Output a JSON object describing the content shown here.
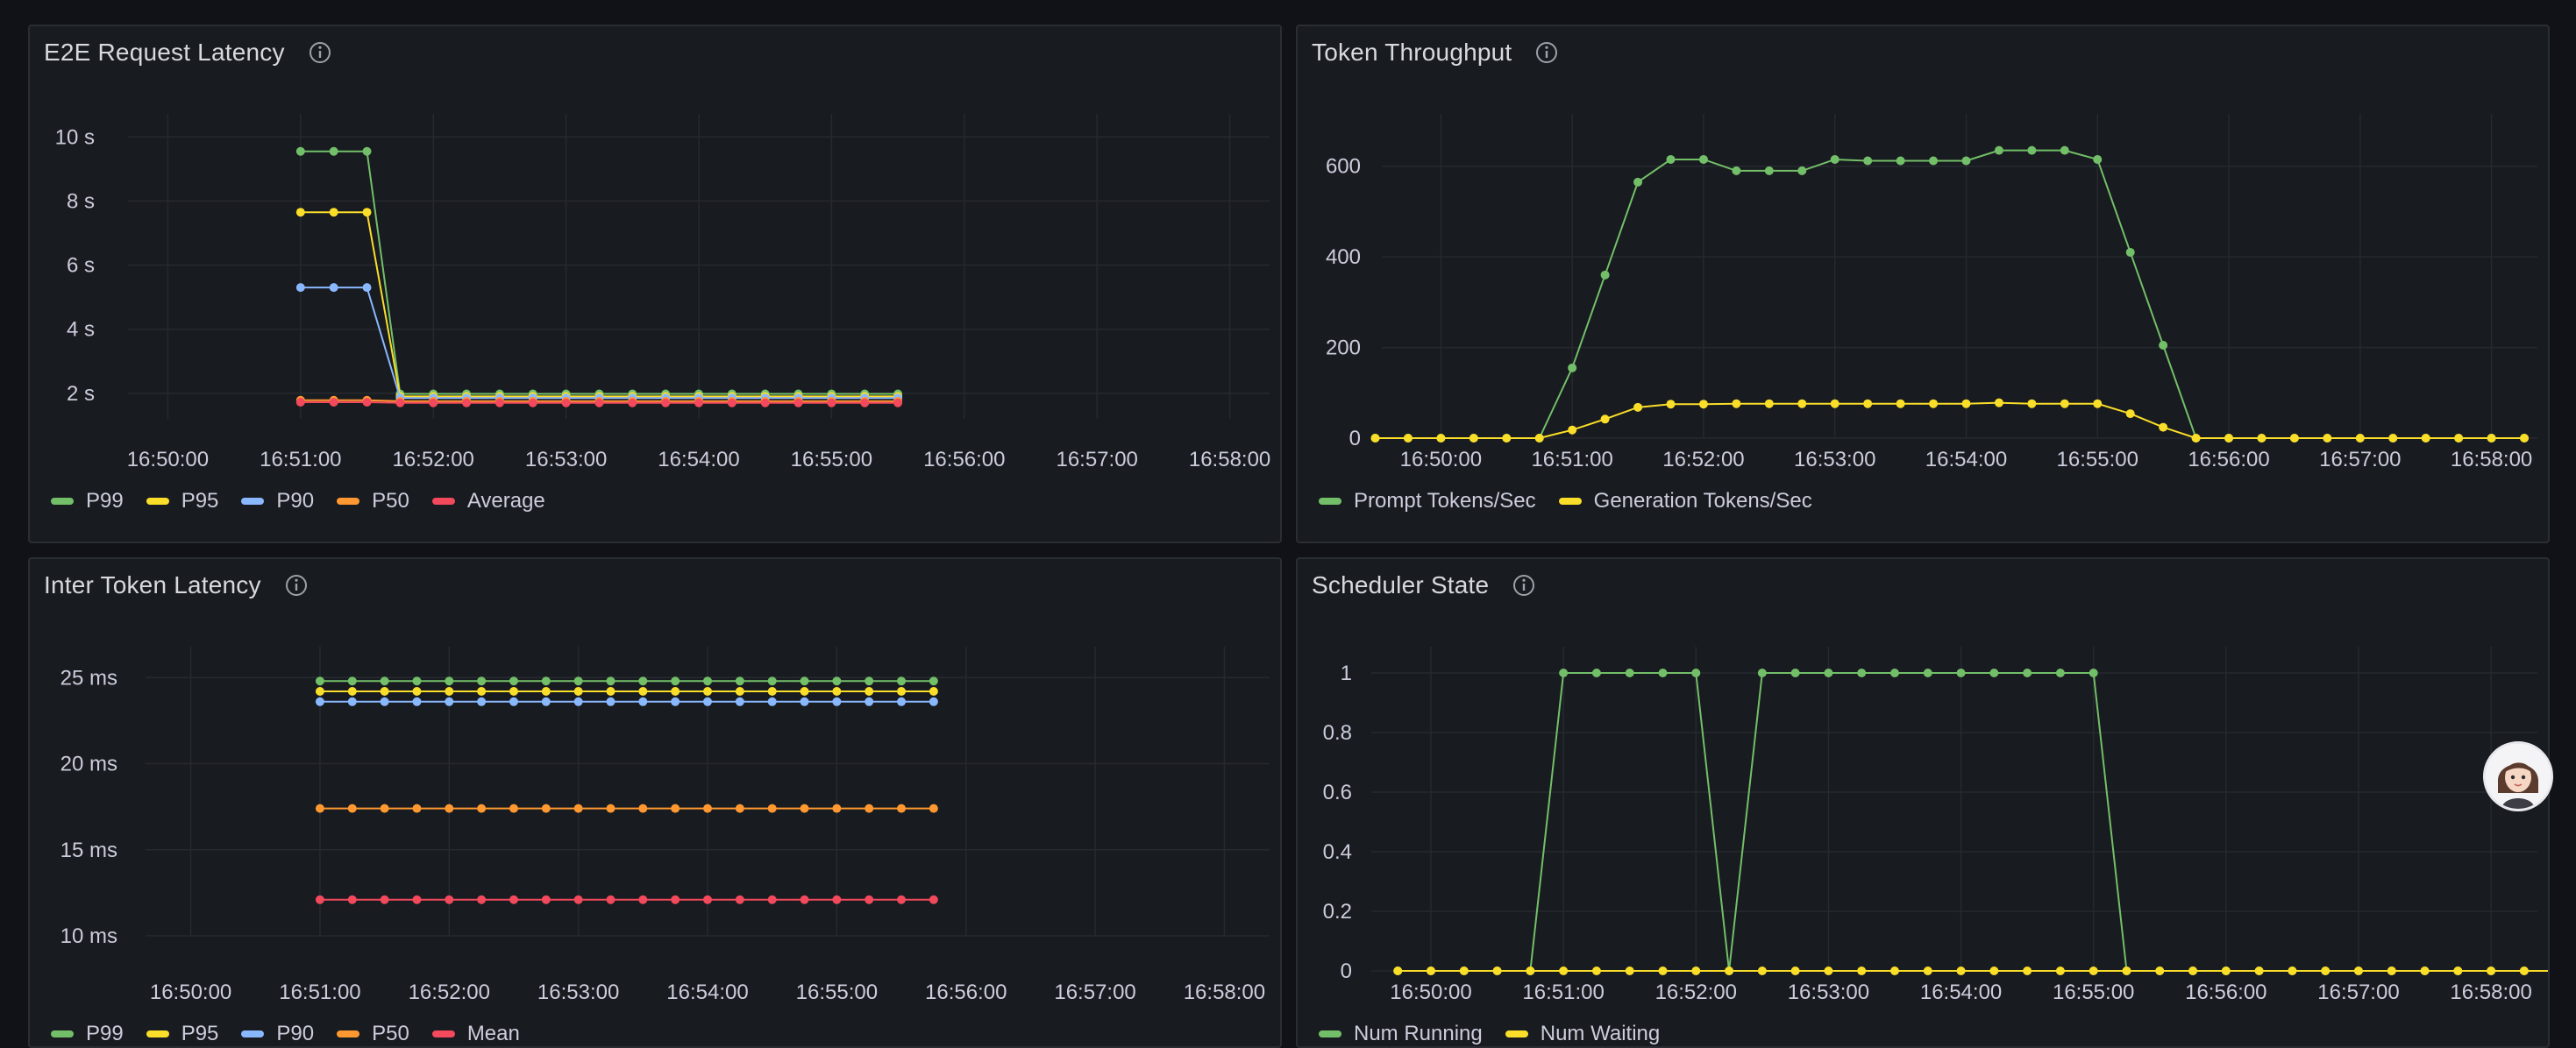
{
  "panels": [
    {
      "id": "e2e",
      "title": "E2E Request Latency",
      "chart_data": {
        "type": "line",
        "x_ticks": [
          "16:50:00",
          "16:51:00",
          "16:52:00",
          "16:53:00",
          "16:54:00",
          "16:55:00",
          "16:56:00",
          "16:57:00",
          "16:58:00"
        ],
        "y_ticks": [
          "10 s",
          "8 s",
          "6 s",
          "4 s",
          "2 s"
        ],
        "y_tick_values": [
          10,
          8,
          6,
          4,
          2
        ],
        "ylim": [
          1.2,
          10.5
        ],
        "xlim_minutes": [
          -0.3,
          8.3
        ],
        "legend": "bottom",
        "series": [
          {
            "name": "P99",
            "color": "#73bf69",
            "start": 1.0,
            "step": 0.25,
            "values": [
              9.55,
              9.55,
              9.55,
              1.98,
              1.98,
              1.98,
              1.98,
              1.98,
              1.98,
              1.98,
              1.98,
              1.98,
              1.98,
              1.98,
              1.98,
              1.98,
              1.98,
              1.98,
              1.98
            ]
          },
          {
            "name": "P95",
            "color": "#fade2a",
            "start": 1.0,
            "step": 0.25,
            "values": [
              7.65,
              7.65,
              7.65,
              1.9,
              1.9,
              1.9,
              1.9,
              1.9,
              1.9,
              1.9,
              1.9,
              1.9,
              1.9,
              1.9,
              1.9,
              1.9,
              1.9,
              1.9,
              1.9
            ]
          },
          {
            "name": "P90",
            "color": "#8ab8ff",
            "start": 1.0,
            "step": 0.25,
            "values": [
              5.3,
              5.3,
              5.3,
              1.85,
              1.85,
              1.85,
              1.85,
              1.85,
              1.85,
              1.85,
              1.85,
              1.85,
              1.85,
              1.85,
              1.85,
              1.85,
              1.85,
              1.85,
              1.85
            ]
          },
          {
            "name": "P50",
            "color": "#ff9830",
            "start": 1.0,
            "step": 0.25,
            "values": [
              1.78,
              1.78,
              1.78,
              1.75,
              1.75,
              1.75,
              1.75,
              1.75,
              1.75,
              1.75,
              1.75,
              1.75,
              1.75,
              1.75,
              1.75,
              1.75,
              1.75,
              1.75,
              1.75
            ]
          },
          {
            "name": "Average",
            "color": "#f2495c",
            "start": 1.0,
            "step": 0.25,
            "values": [
              1.72,
              1.72,
              1.72,
              1.7,
              1.7,
              1.7,
              1.7,
              1.7,
              1.7,
              1.7,
              1.7,
              1.7,
              1.7,
              1.7,
              1.7,
              1.7,
              1.7,
              1.7,
              1.7
            ]
          }
        ]
      }
    },
    {
      "id": "throughput",
      "title": "Token Throughput",
      "chart_data": {
        "type": "line",
        "x_ticks": [
          "16:50:00",
          "16:51:00",
          "16:52:00",
          "16:53:00",
          "16:54:00",
          "16:55:00",
          "16:56:00",
          "16:57:00",
          "16:58:00"
        ],
        "y_ticks": [
          "600",
          "400",
          "200",
          "0"
        ],
        "y_tick_values": [
          600,
          400,
          200,
          0
        ],
        "ylim": [
          0,
          700
        ],
        "xlim_minutes": [
          -0.45,
          8.35
        ],
        "legend": "bottom",
        "series": [
          {
            "name": "Prompt Tokens/Sec",
            "color": "#73bf69",
            "start": -0.5,
            "step": 0.25,
            "values": [
              0,
              0,
              0,
              0,
              0,
              0,
              155,
              360,
              565,
              615,
              615,
              590,
              590,
              590,
              615,
              612,
              612,
              612,
              612,
              635,
              635,
              635,
              615,
              410,
              205,
              0,
              0,
              0,
              0,
              0,
              0,
              0,
              0,
              0,
              0,
              0
            ]
          },
          {
            "name": "Generation Tokens/Sec",
            "color": "#fade2a",
            "start": -0.5,
            "step": 0.25,
            "values": [
              0,
              0,
              0,
              0,
              0,
              0,
              18,
              42,
              68,
              75,
              75,
              76,
              76,
              76,
              76,
              76,
              76,
              76,
              76,
              78,
              76,
              76,
              76,
              54,
              24,
              0,
              0,
              0,
              0,
              0,
              0,
              0,
              0,
              0,
              0,
              0
            ]
          }
        ]
      }
    },
    {
      "id": "itl",
      "title": "Inter Token Latency",
      "chart_data": {
        "type": "line",
        "x_ticks": [
          "16:50:00",
          "16:51:00",
          "16:52:00",
          "16:53:00",
          "16:54:00",
          "16:55:00",
          "16:56:00",
          "16:57:00",
          "16:58:00"
        ],
        "y_ticks": [
          "25 ms",
          "20 ms",
          "15 ms",
          "10 ms"
        ],
        "y_tick_values": [
          25,
          20,
          15,
          10
        ],
        "ylim": [
          10,
          27
        ],
        "xlim_minutes": [
          -0.35,
          8.35
        ],
        "legend": "bottom",
        "series": [
          {
            "name": "P99",
            "color": "#73bf69",
            "start": 1.0,
            "step": 0.25,
            "count": 20,
            "constant": 24.8
          },
          {
            "name": "P95",
            "color": "#fade2a",
            "start": 1.0,
            "step": 0.25,
            "count": 20,
            "constant": 24.2
          },
          {
            "name": "P90",
            "color": "#8ab8ff",
            "start": 1.0,
            "step": 0.25,
            "count": 20,
            "constant": 23.6
          },
          {
            "name": "P50",
            "color": "#ff9830",
            "start": 1.0,
            "step": 0.25,
            "count": 20,
            "constant": 17.4
          },
          {
            "name": "Mean",
            "color": "#f2495c",
            "start": 1.0,
            "step": 0.25,
            "count": 20,
            "constant": 12.1
          }
        ]
      }
    },
    {
      "id": "sched",
      "title": "Scheduler State",
      "chart_data": {
        "type": "line",
        "x_ticks": [
          "16:50:00",
          "16:51:00",
          "16:52:00",
          "16:53:00",
          "16:54:00",
          "16:55:00",
          "16:56:00",
          "16:57:00",
          "16:58:00"
        ],
        "y_ticks": [
          "1",
          "0.8",
          "0.6",
          "0.4",
          "0.2",
          "0"
        ],
        "y_tick_values": [
          1,
          0.8,
          0.6,
          0.4,
          0.2,
          0
        ],
        "ylim": [
          0,
          1.1
        ],
        "xlim_minutes": [
          -0.45,
          8.35
        ],
        "legend": "bottom",
        "series": [
          {
            "name": "Num Running",
            "color": "#73bf69",
            "start": -0.25,
            "step": 0.25,
            "values": [
              0,
              0,
              0,
              0,
              0,
              1,
              1,
              1,
              1,
              1,
              0,
              1,
              1,
              1,
              1,
              1,
              1,
              1,
              1,
              1,
              1,
              1,
              0,
              0,
              0,
              0,
              0,
              0,
              0,
              0,
              0,
              0,
              0,
              0,
              0,
              0,
              0
            ]
          },
          {
            "name": "Num Waiting",
            "color": "#fade2a",
            "start": -0.25,
            "step": 0.25,
            "values": [
              0,
              0,
              0,
              0,
              0,
              0,
              0,
              0,
              0,
              0,
              0,
              0,
              0,
              0,
              0,
              0,
              0,
              0,
              0,
              0,
              0,
              0,
              0,
              0,
              0,
              0,
              0,
              0,
              0,
              0,
              0,
              0,
              0,
              0,
              0,
              0,
              0
            ]
          }
        ]
      }
    }
  ],
  "colors": {
    "background": "#111217",
    "panel": "#181b1f",
    "grid": "#2a2d33"
  },
  "icons": {
    "info": "info-circle-icon",
    "avatar": "user-avatar-icon"
  }
}
